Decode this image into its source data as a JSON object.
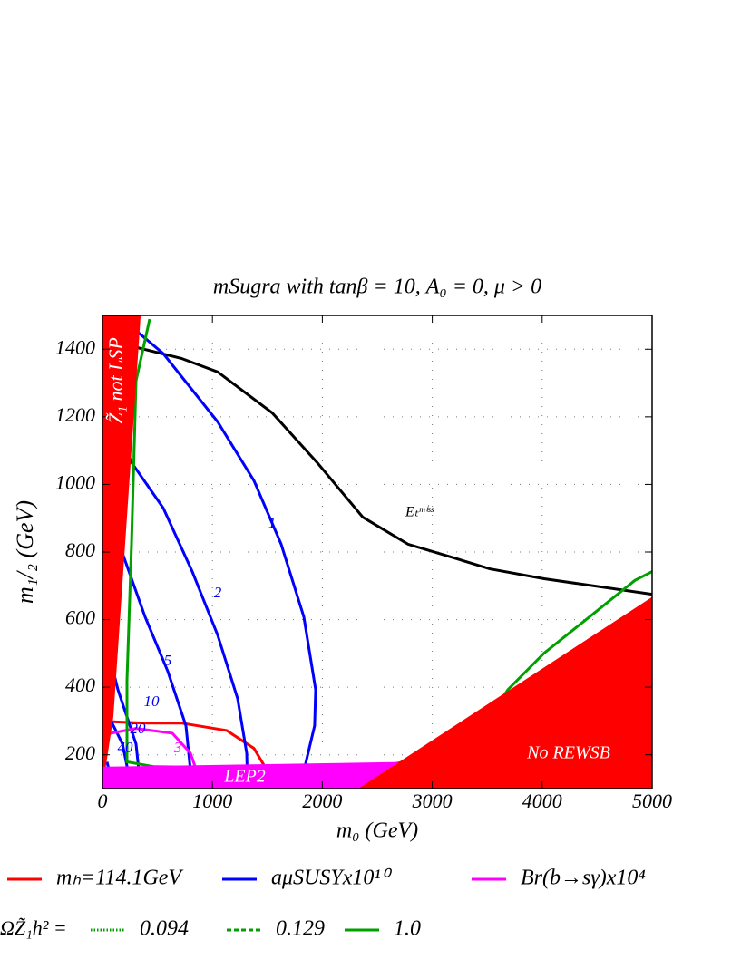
{
  "chart_data": {
    "type": "contour",
    "title": "mSugra with tanβ = 10, A₀ = 0, μ > 0",
    "x_label": "m₀ (GeV)",
    "y_label": "m₁/₂ (GeV)",
    "xlim": [
      0,
      5000
    ],
    "ylim": [
      100,
      1500
    ],
    "xticks": [
      0,
      1000,
      2000,
      3000,
      4000,
      5000
    ],
    "yticks": [
      200,
      400,
      600,
      800,
      1000,
      1200,
      1400
    ],
    "grid": true,
    "legend_title": "ΩZ̃₁h² =",
    "series": [
      {
        "name": "mₕ=114.1GeV",
        "color": "#ff0000",
        "dash": "solid",
        "contours": [
          {
            "x": [
              0,
              388,
              718,
              1130,
              1378,
              1477,
              1502
            ],
            "y": [
              299,
              294,
              294,
              272,
              219,
              165,
              100
            ]
          }
        ]
      },
      {
        "name": "aμSUSYx10¹⁰",
        "color": "#0000ff",
        "dash": "solid",
        "contours": [
          {
            "label": "1",
            "x": [
              182,
              553,
              1048,
              1378,
              1625,
              1832,
              1939,
              1930,
              1832,
              1832
            ],
            "y": [
              1489,
              1387,
              1185,
              1011,
              823,
              608,
              393,
              286,
              152,
              100
            ]
          },
          {
            "label": "2",
            "x": [
              58,
              264,
              553,
              817,
              1048,
              1229,
              1312,
              1320
            ],
            "y": [
              1226,
              1065,
              930,
              742,
              554,
              366,
              205,
              100
            ]
          },
          {
            "label": "5",
            "x": [
              33,
              182,
              388,
              594,
              759,
              817
            ],
            "y": [
              1038,
              796,
              608,
              447,
              286,
              100
            ]
          },
          {
            "label": "10",
            "x": [
              17,
              140,
              305,
              347
            ],
            "y": [
              554,
              393,
              232,
              100
            ]
          },
          {
            "label": "20",
            "x": [
              17,
              182,
              264
            ],
            "y": [
              340,
              232,
              100
            ]
          },
          {
            "label": "40",
            "x": [
              41,
              99
            ],
            "y": [
              179,
              100
            ]
          }
        ]
      },
      {
        "name": "Br(b→sγ)x10⁴",
        "color": "#ff00ff",
        "dash": "solid",
        "contours": [
          {
            "label": "3",
            "x": [
              0,
              305,
              635,
              800,
              842
            ],
            "y": [
              259,
              278,
              264,
              205,
              165
            ]
          }
        ]
      },
      {
        "name": "0.094",
        "color": "#00a000",
        "dash": "dotted",
        "contours": [
          {
            "x": [
              99,
              140
            ],
            "y": [
              876,
              570
            ]
          }
        ]
      },
      {
        "name": "0.129",
        "color": "#00a000",
        "dash": "dashed",
        "contours": [
          {
            "x": [
              17,
              41
            ],
            "y": [
              340,
              232
            ]
          }
        ]
      },
      {
        "name": "1.0",
        "color": "#00a000",
        "dash": "solid",
        "contours": [
          {
            "x": [
              429,
              305,
              264,
              223,
              223,
              470,
              2368,
              3193,
              null,
              3523,
              3688,
              4018,
              4430,
              4843,
              5000
            ],
            "y": [
              1489,
              1306,
              823,
              420,
              179,
              165,
              157,
              205,
              null,
              313,
              393,
              501,
              608,
              716,
              742
            ]
          }
        ]
      }
    ],
    "lines": [
      {
        "label": "Eₜᵐⁱˢˢ",
        "color": "#000000",
        "x": [
          140,
          718,
          1048,
          1543,
          1955,
          2368,
          2780,
          3193,
          3523,
          4018,
          5000
        ],
        "y": [
          1419,
          1373,
          1333,
          1212,
          1064,
          903,
          823,
          783,
          750,
          721,
          675
        ]
      }
    ],
    "regions": [
      {
        "label": "Z̃₁ not LSP",
        "color": "#ff0000",
        "x": [
          0,
          347,
          99,
          0
        ],
        "y": [
          1500,
          1500,
          313,
          100
        ]
      },
      {
        "label": "LEP2",
        "color": "#ff00ff",
        "x": [
          0,
          2780,
          2327,
          0
        ],
        "y": [
          165,
          179,
          100,
          100
        ]
      },
      {
        "label": "No REWSB",
        "color": "#ff0000",
        "x": [
          2327,
          5000,
          5000
        ],
        "y": [
          100,
          667,
          100
        ]
      }
    ]
  }
}
